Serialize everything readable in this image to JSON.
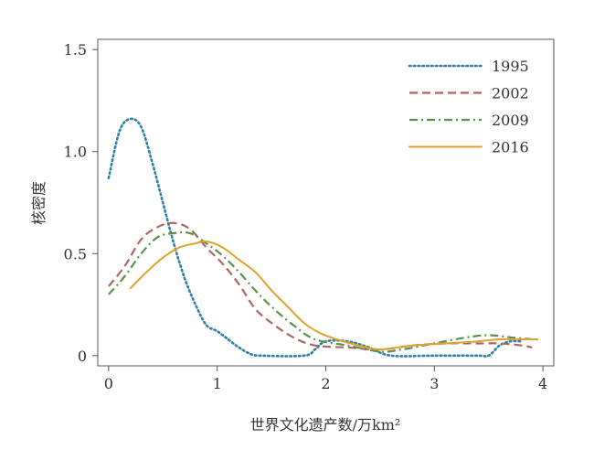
{
  "chart_data": {
    "type": "line",
    "title": "",
    "xlabel": "世界文化遗产数/万km²",
    "ylabel": "核密度",
    "xlim": [
      -0.1,
      4.1
    ],
    "ylim": [
      -0.05,
      1.55
    ],
    "xticks": [
      0,
      1,
      2,
      3,
      4
    ],
    "yticks": [
      0,
      0.5,
      1.0,
      1.5
    ],
    "ytick_labels": [
      "0",
      "0.5",
      "1.0",
      "1.5"
    ],
    "grid": false,
    "legend": "top-right",
    "series": [
      {
        "name": "1995",
        "color": "#2f7fa6",
        "dash": "dotted",
        "points": [
          [
            0,
            0.87
          ],
          [
            0.1,
            1.1
          ],
          [
            0.2,
            1.16
          ],
          [
            0.3,
            1.12
          ],
          [
            0.4,
            0.95
          ],
          [
            0.5,
            0.75
          ],
          [
            0.6,
            0.55
          ],
          [
            0.7,
            0.38
          ],
          [
            0.8,
            0.25
          ],
          [
            0.9,
            0.15
          ],
          [
            1.0,
            0.12
          ],
          [
            1.1,
            0.08
          ],
          [
            1.2,
            0.04
          ],
          [
            1.3,
            0.01
          ],
          [
            1.4,
            0.0
          ],
          [
            1.8,
            0.0
          ],
          [
            1.9,
            0.03
          ],
          [
            2.0,
            0.07
          ],
          [
            2.2,
            0.07
          ],
          [
            2.4,
            0.04
          ],
          [
            2.6,
            0.0
          ],
          [
            3.0,
            0.0
          ],
          [
            3.4,
            0.0
          ],
          [
            3.5,
            0.0
          ],
          [
            3.6,
            0.05
          ],
          [
            3.7,
            0.07
          ],
          [
            3.8,
            0.07
          ]
        ]
      },
      {
        "name": "2002",
        "color": "#b06565",
        "dash": "dashed",
        "points": [
          [
            0,
            0.34
          ],
          [
            0.15,
            0.44
          ],
          [
            0.3,
            0.57
          ],
          [
            0.45,
            0.63
          ],
          [
            0.6,
            0.65
          ],
          [
            0.75,
            0.62
          ],
          [
            0.9,
            0.53
          ],
          [
            1.05,
            0.45
          ],
          [
            1.2,
            0.35
          ],
          [
            1.35,
            0.23
          ],
          [
            1.5,
            0.16
          ],
          [
            1.7,
            0.09
          ],
          [
            1.9,
            0.05
          ],
          [
            2.2,
            0.04
          ],
          [
            2.5,
            0.03
          ],
          [
            2.8,
            0.05
          ],
          [
            3.1,
            0.06
          ],
          [
            3.4,
            0.06
          ],
          [
            3.6,
            0.06
          ],
          [
            3.8,
            0.05
          ],
          [
            3.9,
            0.04
          ]
        ]
      },
      {
        "name": "2009",
        "color": "#5f8f4e",
        "dash": "dashdot",
        "points": [
          [
            0,
            0.3
          ],
          [
            0.15,
            0.39
          ],
          [
            0.3,
            0.5
          ],
          [
            0.45,
            0.58
          ],
          [
            0.6,
            0.6
          ],
          [
            0.75,
            0.6
          ],
          [
            0.9,
            0.55
          ],
          [
            1.05,
            0.49
          ],
          [
            1.2,
            0.41
          ],
          [
            1.35,
            0.32
          ],
          [
            1.5,
            0.24
          ],
          [
            1.7,
            0.15
          ],
          [
            1.9,
            0.08
          ],
          [
            2.2,
            0.05
          ],
          [
            2.5,
            0.02
          ],
          [
            2.7,
            0.03
          ],
          [
            3.0,
            0.06
          ],
          [
            3.3,
            0.09
          ],
          [
            3.5,
            0.1
          ],
          [
            3.7,
            0.09
          ],
          [
            3.9,
            0.08
          ]
        ]
      },
      {
        "name": "2016",
        "color": "#e0a12f",
        "dash": "solid",
        "points": [
          [
            0.2,
            0.33
          ],
          [
            0.35,
            0.41
          ],
          [
            0.5,
            0.48
          ],
          [
            0.65,
            0.53
          ],
          [
            0.8,
            0.55
          ],
          [
            0.9,
            0.56
          ],
          [
            1.05,
            0.53
          ],
          [
            1.2,
            0.47
          ],
          [
            1.35,
            0.41
          ],
          [
            1.5,
            0.32
          ],
          [
            1.65,
            0.24
          ],
          [
            1.8,
            0.16
          ],
          [
            1.95,
            0.11
          ],
          [
            2.1,
            0.08
          ],
          [
            2.3,
            0.05
          ],
          [
            2.5,
            0.03
          ],
          [
            2.8,
            0.05
          ],
          [
            3.1,
            0.06
          ],
          [
            3.4,
            0.07
          ],
          [
            3.6,
            0.08
          ],
          [
            3.8,
            0.08
          ],
          [
            3.95,
            0.08
          ]
        ]
      }
    ]
  }
}
